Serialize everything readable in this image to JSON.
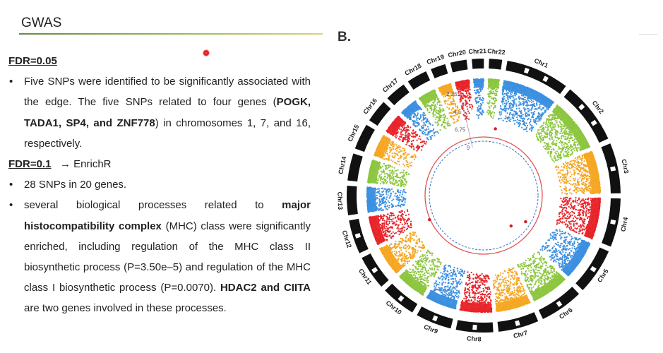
{
  "header": {
    "title": "GWAS"
  },
  "figure": {
    "panel_label": "B."
  },
  "section1": {
    "heading": "FDR=0.05",
    "bullet1": {
      "pre": "Five SNPs were identified to be significantly associated with the edge. The five SNPs related to four genes (",
      "genes": "POGK, TADA1, SP4, and ZNF778",
      "post": ") in chromosomes 1, 7, and 16, respectively."
    }
  },
  "section2": {
    "heading": "FDR=0.1",
    "arrow": "→",
    "enrich": "EnrichR",
    "bullet1": "28 SNPs in 20 genes.",
    "bullet2": {
      "t1": "several biological processes related to ",
      "b1": "major histocompatibility complex",
      "t2": " (MHC) class were significantly enriched, including regulation of the MHC class II biosynthetic process (P=3.50e–5) and regulation of the MHC class I biosynthetic process (P=0.0070). ",
      "b2": "HDAC2 and CIITA",
      "t3": " are two genes involved in these processes."
    }
  },
  "chart_data": {
    "type": "circular-manhattan",
    "chromosomes": [
      "Chr1",
      "Chr2",
      "Chr3",
      "Chr4",
      "Chr5",
      "Chr6",
      "Chr7",
      "Chr8",
      "Chr9",
      "Chr10",
      "Chr11",
      "Chr12",
      "Chr13",
      "Chr14",
      "Chr15",
      "Chr16",
      "Chr17",
      "Chr18",
      "Chr19",
      "Chr20",
      "Chr21",
      "Chr22"
    ],
    "relative_sizes": [
      249,
      243,
      198,
      191,
      181,
      171,
      159,
      146,
      141,
      136,
      135,
      133,
      115,
      107,
      102,
      90,
      83,
      80,
      59,
      64,
      47,
      51
    ],
    "colors": [
      "#3b8fe0",
      "#8cc63f",
      "#f5a623",
      "#e8242a"
    ],
    "y_ticks": [
      "9",
      "6.75",
      "4.5",
      "2.25"
    ],
    "y_range": [
      0,
      9
    ],
    "threshold_lines": [
      "red circle",
      "blue dashed circle"
    ]
  }
}
